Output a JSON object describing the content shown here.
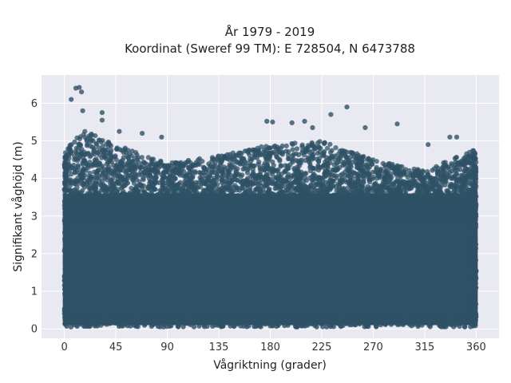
{
  "chart_data": {
    "type": "scatter",
    "title_line1": "År 1979 - 2019",
    "title_line2": "Koordinat (Sweref 99 TM): E 728504, N 6473788",
    "xlabel": "Vågriktning (grader)",
    "ylabel": "Signifikant våghöjd (m)",
    "xlim": [
      -20,
      380
    ],
    "ylim": [
      -0.25,
      6.75
    ],
    "xticks": [
      0,
      45,
      90,
      135,
      180,
      225,
      270,
      315,
      360
    ],
    "xtick_labels": [
      "0",
      "45",
      "90",
      "135",
      "180",
      "225",
      "270",
      "315",
      "360"
    ],
    "yticks": [
      0,
      1,
      2,
      3,
      4,
      5,
      6
    ],
    "ytick_labels": [
      "0",
      "1",
      "2",
      "3",
      "4",
      "5",
      "6"
    ],
    "grid": true,
    "marker_color": "#2f5166",
    "background_color": "#e9e9f2",
    "dense_region": {
      "x_range": [
        0,
        360
      ],
      "y_range": [
        0.1,
        3.6
      ]
    },
    "upper_envelope": [
      {
        "x": 0,
        "y": 4.7
      },
      {
        "x": 15,
        "y": 5.3
      },
      {
        "x": 45,
        "y": 4.9
      },
      {
        "x": 90,
        "y": 4.4
      },
      {
        "x": 135,
        "y": 4.6
      },
      {
        "x": 180,
        "y": 4.9
      },
      {
        "x": 225,
        "y": 5.0
      },
      {
        "x": 270,
        "y": 4.5
      },
      {
        "x": 315,
        "y": 4.2
      },
      {
        "x": 360,
        "y": 4.8
      }
    ],
    "outliers": [
      {
        "x": 10,
        "y": 6.4
      },
      {
        "x": 13,
        "y": 6.42
      },
      {
        "x": 15,
        "y": 6.3
      },
      {
        "x": 6,
        "y": 6.1
      },
      {
        "x": 16,
        "y": 5.8
      },
      {
        "x": 33,
        "y": 5.75
      },
      {
        "x": 33,
        "y": 5.55
      },
      {
        "x": 48,
        "y": 5.25
      },
      {
        "x": 68,
        "y": 5.2
      },
      {
        "x": 85,
        "y": 5.1
      },
      {
        "x": 177,
        "y": 5.52
      },
      {
        "x": 182,
        "y": 5.5
      },
      {
        "x": 199,
        "y": 5.48
      },
      {
        "x": 210,
        "y": 5.52
      },
      {
        "x": 217,
        "y": 5.35
      },
      {
        "x": 233,
        "y": 5.7
      },
      {
        "x": 247,
        "y": 5.9
      },
      {
        "x": 263,
        "y": 5.35
      },
      {
        "x": 291,
        "y": 5.45
      },
      {
        "x": 337,
        "y": 5.1
      },
      {
        "x": 343,
        "y": 5.1
      },
      {
        "x": 318,
        "y": 4.9
      },
      {
        "x": 25,
        "y": 5.0
      }
    ]
  }
}
